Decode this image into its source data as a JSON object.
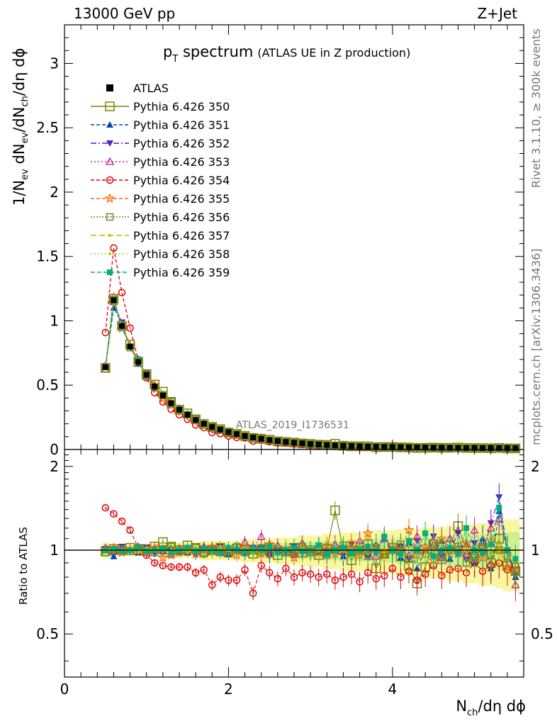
{
  "header": {
    "left": "13000 GeV pp",
    "right": "Z+Jet"
  },
  "side_text": {
    "rivet": "Rivet 3.1.10, ≥ 300k events",
    "mcplots": "mcplots.cern.ch [arXiv:1306.3436]"
  },
  "chart_data": {
    "type": "line",
    "title": "p",
    "title_sub": "T",
    "title_rest": " spectrum",
    "subtitle": "(ATLAS UE in Z production)",
    "analysis_label": "ATLAS_2019_I1736531",
    "xlabel": "N",
    "xlabel_sub": "ch",
    "xlabel_rest": "/dη dϕ",
    "ylabel_main": "1/N_ev dN_ev/dN_ch/dη dϕ",
    "ylabel_parts": [
      "1/N",
      "ev",
      " dN",
      "ev",
      "/dN",
      "ch",
      "/dη dϕ"
    ],
    "ylabel_ratio": "Ratio to ATLAS",
    "xlim": [
      0,
      5.6
    ],
    "ylim_main": [
      0,
      3.3
    ],
    "ylim_ratio": [
      0.35,
      2.3
    ],
    "main_ticks": [
      {
        "v": 0,
        "label": "0"
      },
      {
        "v": 0.5,
        "label": "0.5"
      },
      {
        "v": 1,
        "label": "1"
      },
      {
        "v": 1.5,
        "label": "1.5"
      },
      {
        "v": 2,
        "label": "2"
      },
      {
        "v": 2.5,
        "label": "2.5"
      },
      {
        "v": 3,
        "label": "3"
      }
    ],
    "ratio_ticks": [
      {
        "v": 0.5,
        "label": "0.5"
      },
      {
        "v": 1,
        "label": "1"
      },
      {
        "v": 2,
        "label": "2"
      }
    ],
    "x_ticks": [
      {
        "v": 0,
        "label": "0"
      },
      {
        "v": 2,
        "label": "2"
      },
      {
        "v": 4,
        "label": "4"
      }
    ],
    "x": [
      0.5,
      0.6,
      0.7,
      0.8,
      0.9,
      1.0,
      1.1,
      1.2,
      1.3,
      1.4,
      1.5,
      1.6,
      1.7,
      1.8,
      1.9,
      2.0,
      2.1,
      2.2,
      2.3,
      2.4,
      2.5,
      2.6,
      2.7,
      2.8,
      2.9,
      3.0,
      3.1,
      3.2,
      3.3,
      3.4,
      3.5,
      3.6,
      3.7,
      3.8,
      3.9,
      4.0,
      4.1,
      4.2,
      4.3,
      4.4,
      4.5,
      4.6,
      4.7,
      4.8,
      4.9,
      5.0,
      5.1,
      5.2,
      5.3,
      5.4,
      5.5
    ],
    "atlas": [
      0.64,
      1.16,
      0.96,
      0.8,
      0.68,
      0.58,
      0.49,
      0.42,
      0.36,
      0.31,
      0.27,
      0.23,
      0.2,
      0.175,
      0.155,
      0.135,
      0.12,
      0.105,
      0.093,
      0.083,
      0.074,
      0.066,
      0.059,
      0.053,
      0.048,
      0.043,
      0.039,
      0.035,
      0.032,
      0.029,
      0.027,
      0.025,
      0.023,
      0.021,
      0.02,
      0.019,
      0.018,
      0.017,
      0.016,
      0.015,
      0.014,
      0.014,
      0.013,
      0.013,
      0.012,
      0.012,
      0.011,
      0.011,
      0.011,
      0.01,
      0.01
    ],
    "atlas_ratio_band": [
      0.04,
      0.03,
      0.03,
      0.03,
      0.03,
      0.03,
      0.03,
      0.04,
      0.04,
      0.04,
      0.04,
      0.04,
      0.05,
      0.05,
      0.05,
      0.05,
      0.05,
      0.06,
      0.06,
      0.06,
      0.06,
      0.07,
      0.07,
      0.07,
      0.08,
      0.08,
      0.08,
      0.09,
      0.09,
      0.1,
      0.1,
      0.1,
      0.1,
      0.11,
      0.11,
      0.11,
      0.12,
      0.12,
      0.12,
      0.13,
      0.13,
      0.13,
      0.14,
      0.14,
      0.15,
      0.15,
      0.16,
      0.16,
      0.17,
      0.18,
      0.18
    ],
    "series": [
      {
        "name": "Pythia 6.426 350",
        "color": "#808000",
        "marker": "square-open",
        "dash": "",
        "ratio": [
          0.99,
          1.01,
          1.0,
          1.02,
          1.0,
          1.01,
          1.03,
          1.07,
          1.03,
          1.0,
          1.04,
          1.02,
          0.99,
          1.0,
          1.02,
          0.98,
          1.01,
          1.0,
          0.97,
          1.0,
          1.02,
          0.96,
          0.99,
          1.02,
          0.98,
          1.0,
          0.96,
          1.01,
          1.39,
          1.0,
          0.92,
          1.0,
          1.05,
          0.86,
          0.97,
          1.02,
          0.95,
          0.88,
          0.76,
          0.87,
          1.05,
          0.93,
          1.04,
          1.22,
          1.0,
          0.93,
          1.02,
          0.9,
          1.1,
          0.88,
          0.84
        ]
      },
      {
        "name": "Pythia 6.426 351",
        "color": "#0047ab",
        "marker": "triangle-up",
        "dash": "5,3",
        "ratio": [
          1.0,
          0.95,
          1.02,
          1.0,
          0.98,
          1.01,
          1.0,
          0.99,
          1.02,
          1.0,
          0.98,
          1.01,
          1.03,
          0.99,
          1.0,
          0.97,
          1.02,
          1.0,
          0.99,
          1.03,
          0.98,
          1.0,
          1.02,
          0.96,
          1.0,
          1.01,
          0.98,
          1.03,
          0.99,
          0.95,
          1.02,
          1.0,
          0.97,
          1.05,
          0.98,
          1.0,
          0.94,
          1.06,
          0.86,
          1.0,
          0.97,
          1.08,
          0.93,
          1.0,
          1.05,
          0.9,
          1.1,
          0.86,
          1.38,
          1.0,
          0.8
        ]
      },
      {
        "name": "Pythia 6.426 352",
        "color": "#4b1fc8",
        "marker": "triangle-down",
        "dash": "8,3,2,3",
        "ratio": [
          1.01,
          0.98,
          1.03,
          0.99,
          1.0,
          1.02,
          0.97,
          1.01,
          1.0,
          0.98,
          1.02,
          0.96,
          1.01,
          0.99,
          1.03,
          0.98,
          1.0,
          0.97,
          1.02,
          1.01,
          0.95,
          1.0,
          0.98,
          1.03,
          0.97,
          1.0,
          1.04,
          0.98,
          1.0,
          0.97,
          1.05,
          0.99,
          0.94,
          1.02,
          1.1,
          0.98,
          1.03,
          0.93,
          1.08,
          0.99,
          1.12,
          0.95,
          1.0,
          1.15,
          0.92,
          1.06,
          0.97,
          1.25,
          1.55,
          1.0,
          0.82
        ]
      },
      {
        "name": "Pythia 6.426 353",
        "color": "#c0208a",
        "marker": "triangle-up-open",
        "dash": "2,3",
        "ratio": [
          1.02,
          0.99,
          1.0,
          1.01,
          1.03,
          0.98,
          1.01,
          1.0,
          0.97,
          1.02,
          1.0,
          0.99,
          1.03,
          1.01,
          0.98,
          1.02,
          1.0,
          1.07,
          1.02,
          1.12,
          0.99,
          1.04,
          1.01,
          0.98,
          1.06,
          1.0,
          1.03,
          0.97,
          1.05,
          1.02,
          0.99,
          1.08,
          1.01,
          0.95,
          1.1,
          1.0,
          1.04,
          0.96,
          1.12,
          1.0,
          1.05,
          0.94,
          1.1,
          1.02,
          0.97,
          1.18,
          1.01,
          1.2,
          1.3,
          1.0,
          0.75
        ]
      },
      {
        "name": "Pythia 6.426 354",
        "color": "#e00000",
        "marker": "circle-open",
        "dash": "5,3",
        "ratio": [
          1.42,
          1.35,
          1.27,
          1.18,
          1.02,
          0.96,
          0.9,
          0.88,
          0.87,
          0.87,
          0.87,
          0.83,
          0.85,
          0.75,
          0.8,
          0.78,
          0.78,
          0.85,
          0.7,
          0.88,
          0.83,
          0.79,
          0.86,
          0.8,
          0.83,
          0.82,
          0.8,
          0.82,
          0.78,
          0.8,
          0.82,
          0.77,
          0.83,
          0.79,
          0.81,
          0.86,
          0.8,
          0.84,
          0.78,
          0.82,
          0.88,
          0.81,
          0.85,
          0.86,
          0.83,
          0.9,
          0.84,
          0.88,
          0.9,
          0.85,
          0.88
        ]
      },
      {
        "name": "Pythia 6.426 355",
        "color": "#ff6600",
        "marker": "star-open",
        "dash": "5,3",
        "ratio": [
          1.0,
          1.02,
          0.98,
          1.01,
          1.0,
          0.99,
          1.02,
          0.94,
          0.96,
          0.98,
          1.01,
          0.97,
          1.0,
          1.03,
          0.98,
          1.01,
          0.96,
          1.02,
          1.0,
          0.97,
          1.05,
          0.99,
          1.01,
          0.94,
          1.02,
          1.0,
          0.98,
          1.04,
          0.97,
          1.0,
          1.06,
          0.96,
          1.15,
          1.0,
          0.98,
          1.04,
          1.0,
          1.18,
          0.96,
          1.03,
          0.92,
          1.1,
          1.0,
          0.97,
          1.06,
          1.0,
          0.94,
          1.08,
          1.0,
          0.87,
          0.85
        ]
      },
      {
        "name": "Pythia 6.426 356",
        "color": "#6b8e23",
        "marker": "square-open-small",
        "dash": "2,2",
        "ratio": [
          0.98,
          1.0,
          1.01,
          0.99,
          1.02,
          1.0,
          0.98,
          1.01,
          1.03,
          0.99,
          1.0,
          1.02,
          0.97,
          1.0,
          1.01,
          0.99,
          1.03,
          0.98,
          1.0,
          1.02,
          0.97,
          1.01,
          0.99,
          1.0,
          1.03,
          0.98,
          1.01,
          0.96,
          1.0,
          1.04,
          0.98,
          1.0,
          0.95,
          1.02,
          0.97,
          1.0,
          1.05,
          0.93,
          1.0,
          0.97,
          1.06,
          0.95,
          1.0,
          1.03,
          0.9,
          0.95,
          1.02,
          0.97,
          1.0,
          0.95,
          0.84
        ]
      },
      {
        "name": "Pythia 6.426 357",
        "color": "#d4b400",
        "marker": "dot",
        "dash": "8,4",
        "ratio": [
          1.0,
          0.99,
          1.01,
          1.0,
          0.98,
          1.02,
          1.0,
          0.99,
          1.01,
          1.0,
          0.98,
          1.02,
          1.0,
          0.97,
          1.02,
          1.0,
          0.99,
          1.01,
          0.98,
          1.02,
          1.0,
          0.97,
          1.03,
          1.0,
          0.98,
          1.01,
          0.99,
          1.03,
          0.98,
          1.0,
          1.02,
          0.96,
          1.0,
          1.04,
          0.98,
          1.0,
          0.95,
          1.03,
          1.0,
          0.97,
          1.04,
          1.0,
          0.96,
          1.02,
          1.0,
          0.98,
          1.03,
          0.95,
          1.0,
          1.02,
          0.92
        ]
      },
      {
        "name": "Pythia 6.426 358",
        "color": "#b8c800",
        "marker": "dot",
        "dash": "2,3",
        "ratio": [
          1.01,
          1.0,
          0.99,
          1.02,
          1.0,
          0.98,
          1.01,
          1.0,
          0.99,
          1.02,
          1.0,
          0.98,
          1.01,
          1.0,
          1.03,
          0.99,
          1.0,
          1.02,
          0.98,
          1.0,
          1.01,
          0.99,
          1.02,
          1.0,
          0.97,
          1.01,
          1.0,
          0.98,
          1.02,
          0.99,
          1.0,
          1.03,
          0.97,
          1.0,
          1.02,
          0.98,
          1.0,
          1.04,
          0.97,
          1.0,
          0.98,
          1.03,
          1.0,
          0.96,
          1.02,
          1.0,
          0.97,
          1.04,
          1.0,
          0.96,
          0.9
        ]
      },
      {
        "name": "Pythia 6.426 359",
        "color": "#00b080",
        "marker": "square",
        "dash": "6,3",
        "ratio": [
          1.0,
          1.01,
          0.99,
          1.0,
          1.02,
          0.99,
          1.0,
          1.01,
          0.98,
          1.0,
          1.02,
          0.99,
          1.01,
          1.0,
          0.98,
          1.02,
          1.0,
          0.99,
          1.01,
          1.0,
          1.03,
          0.98,
          1.0,
          1.02,
          0.99,
          1.0,
          1.04,
          0.97,
          1.0,
          1.02,
          0.98,
          1.0,
          1.03,
          0.99,
          1.12,
          1.0,
          0.97,
          1.08,
          1.0,
          1.15,
          0.95,
          1.0,
          1.02,
          0.97,
          1.2,
          1.0,
          0.98,
          1.05,
          1.42,
          1.0,
          0.93
        ]
      }
    ],
    "legend": {
      "atlas_label": "ATLAS",
      "position": "top-left"
    }
  }
}
